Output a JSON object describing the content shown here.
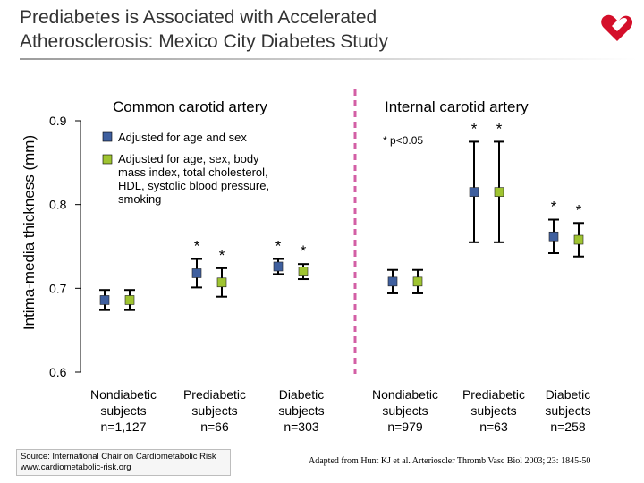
{
  "slide": {
    "title_line1": "Prediabetes is Associated with Accelerated",
    "title_line2": "Atherosclerosis: Mexico City Diabetes Study",
    "source_line1": "Source: International Chair on Cardiometabolic Risk",
    "source_line2": "www.cardiometabolic-risk.org",
    "reference": "Adapted from Hunt KJ et al. Arterioscler Thromb Vasc Biol 2003; 23: 1845-50",
    "logo_icon": "heart-logo-icon",
    "colors": {
      "series1": "#3f5f9e",
      "series2": "#9fc431",
      "divider": "#d35fa5",
      "logo": "#d40f2a"
    }
  },
  "chart_data": {
    "type": "scatter",
    "ylabel": "Intima-media thickness (mm)",
    "ylim": [
      0.6,
      0.9
    ],
    "yticks": [
      "0.9",
      "0.8",
      "0.7",
      "0.6"
    ],
    "legend": {
      "series1": "Adjusted for age and sex",
      "series2_lines": [
        "Adjusted for age, sex, body",
        "mass index, total cholesterol,",
        "HDL, systolic blood pressure,",
        "smoking"
      ]
    },
    "note": "* p<0.05",
    "panels": [
      {
        "title": "Common carotid artery",
        "categories": [
          {
            "lines": [
              "Nondiabetic",
              "subjects",
              "n=1,127"
            ]
          },
          {
            "lines": [
              "Prediabetic",
              "subjects",
              "n=66"
            ]
          },
          {
            "lines": [
              "Diabetic",
              "subjects",
              "n=303"
            ]
          }
        ],
        "series": [
          {
            "name": "Adjusted for age and sex",
            "values": [
              0.686,
              0.718,
              0.726
            ],
            "low": [
              0.674,
              0.701,
              0.717
            ],
            "high": [
              0.698,
              0.735,
              0.735
            ],
            "sig": [
              false,
              true,
              true
            ]
          },
          {
            "name": "Adjusted for age, sex, body mass index, total cholesterol, HDL, systolic blood pressure, smoking",
            "values": [
              0.686,
              0.707,
              0.72
            ],
            "low": [
              0.674,
              0.69,
              0.711
            ],
            "high": [
              0.698,
              0.724,
              0.729
            ],
            "sig": [
              false,
              true,
              true
            ]
          }
        ]
      },
      {
        "title": "Internal carotid artery",
        "categories": [
          {
            "lines": [
              "Nondiabetic",
              "subjects",
              "n=979"
            ]
          },
          {
            "lines": [
              "Prediabetic",
              "subjects",
              "n=63"
            ]
          },
          {
            "lines": [
              "Diabetic",
              "subjects",
              "n=258"
            ]
          }
        ],
        "series": [
          {
            "name": "Adjusted for age and sex",
            "values": [
              0.708,
              0.815,
              0.762
            ],
            "low": [
              0.694,
              0.755,
              0.742
            ],
            "high": [
              0.722,
              0.875,
              0.782
            ],
            "sig": [
              false,
              true,
              true
            ]
          },
          {
            "name": "Adjusted for age, sex, body mass index, total cholesterol, HDL, systolic blood pressure, smoking",
            "values": [
              0.708,
              0.815,
              0.758
            ],
            "low": [
              0.694,
              0.755,
              0.738
            ],
            "high": [
              0.722,
              0.875,
              0.778
            ],
            "sig": [
              false,
              true,
              true
            ]
          }
        ]
      }
    ]
  }
}
